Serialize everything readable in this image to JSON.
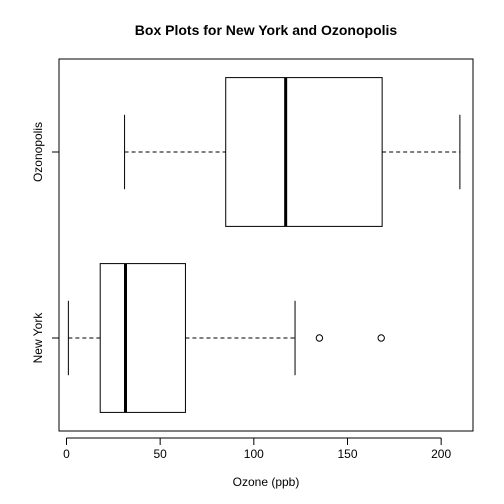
{
  "chart_data": {
    "type": "boxplot",
    "orientation": "horizontal",
    "title": "Box Plots for New York and Ozonopolis",
    "xlabel": "Ozone (ppb)",
    "ylabel": "",
    "xlim": [
      -4,
      217
    ],
    "x_ticks": [
      0,
      50,
      100,
      150,
      200
    ],
    "x_tick_labels": [
      "0",
      "50",
      "100",
      "150",
      "200"
    ],
    "grid": false,
    "series": [
      {
        "name": "New York",
        "whisker_low": 1,
        "q1": 18,
        "median": 31.5,
        "q3": 63.5,
        "whisker_high": 122,
        "outliers": [
          135,
          168
        ]
      },
      {
        "name": "Ozonopolis",
        "whisker_low": 31,
        "q1": 85,
        "median": 117,
        "q3": 168.5,
        "whisker_high": 210,
        "outliers": []
      }
    ]
  }
}
